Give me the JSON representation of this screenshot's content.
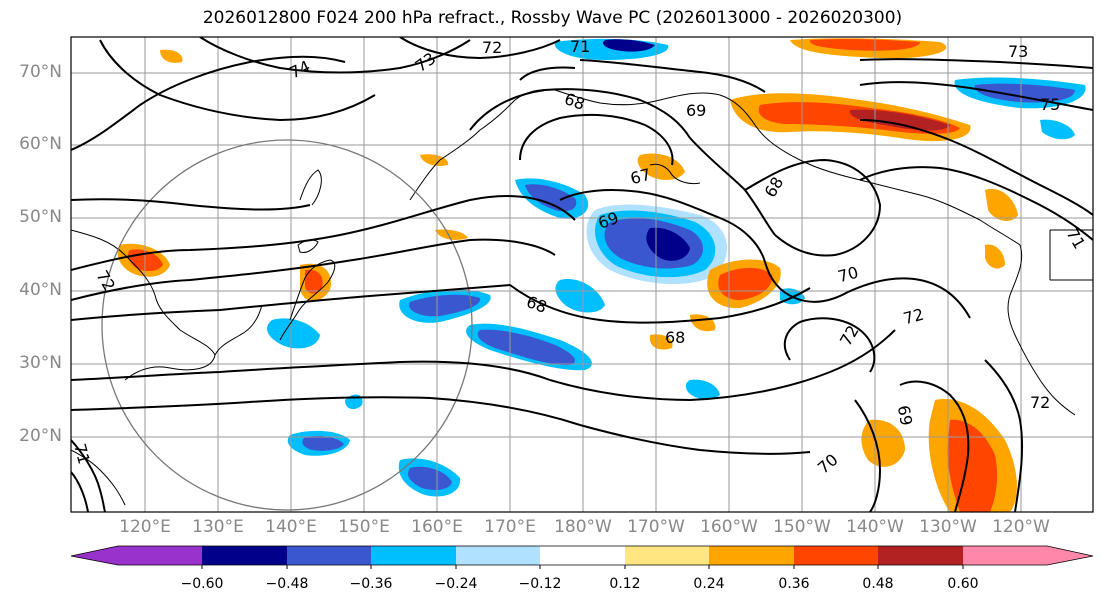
{
  "title": "2026012800 F024 200 hPa refract., Rossby Wave PC (2026013000 - 2026020300)",
  "latitude_labels": [
    "70°N",
    "60°N",
    "50°N",
    "40°N",
    "30°N",
    "20°N"
  ],
  "longitude_labels": [
    "120°E",
    "130°E",
    "140°E",
    "150°E",
    "160°E",
    "170°E",
    "180°W",
    "170°W",
    "160°W",
    "150°W",
    "140°W",
    "130°W",
    "120°W"
  ],
  "contour_labels": [
    "74",
    "73",
    "72",
    "71",
    "68",
    "69",
    "67",
    "68",
    "69",
    "68",
    "68",
    "70",
    "72",
    "72",
    "70",
    "69",
    "73",
    "75",
    "71",
    "72",
    "71",
    "72"
  ],
  "colorbar": {
    "tick_labels": [
      "−0.60",
      "−0.48",
      "−0.36",
      "−0.24",
      "−0.12",
      "0.12",
      "0.24",
      "0.36",
      "0.48",
      "0.60"
    ],
    "colors": [
      "#9932cc",
      "#00008b",
      "#3a57cf",
      "#00bfff",
      "#b0e2ff",
      "#ffffff",
      "#ffe680",
      "#ffa500",
      "#ff4500",
      "#b22222",
      "#ff88aa"
    ]
  },
  "shading_colors": {
    "strong_negative": "#00008b",
    "negative": "#3a57cf",
    "moderate_negative": "#00bfff",
    "weak_negative": "#b0e2ff",
    "weak_positive": "#ffe680",
    "positive": "#ffa500",
    "strong_positive": "#ff4500",
    "very_strong_positive": "#b22222"
  }
}
